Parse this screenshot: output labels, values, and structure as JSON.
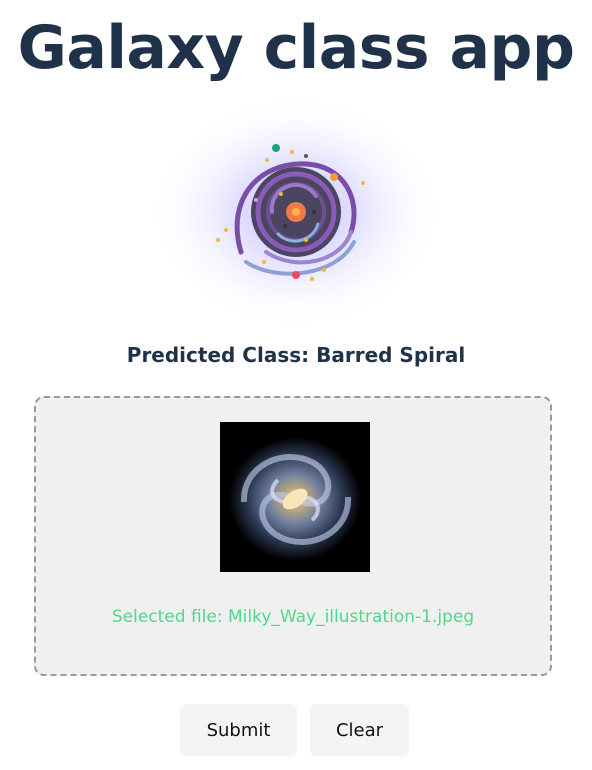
{
  "app": {
    "title": "Galaxy class app",
    "logo_icon": "galaxy-logo-icon"
  },
  "result": {
    "prediction_text": "Predicted Class: Barred Spiral"
  },
  "upload": {
    "preview_icon": "spiral-galaxy-image",
    "selected_file_text": "Selected file: Milky_Way_illustration-1.jpeg",
    "selected_file_color": "#4fd88a"
  },
  "actions": {
    "submit_label": "Submit",
    "clear_label": "Clear"
  },
  "colors": {
    "title": "#1f3249",
    "dropzone_bg": "#f0f0f0",
    "button_bg": "#f4f4f4"
  }
}
